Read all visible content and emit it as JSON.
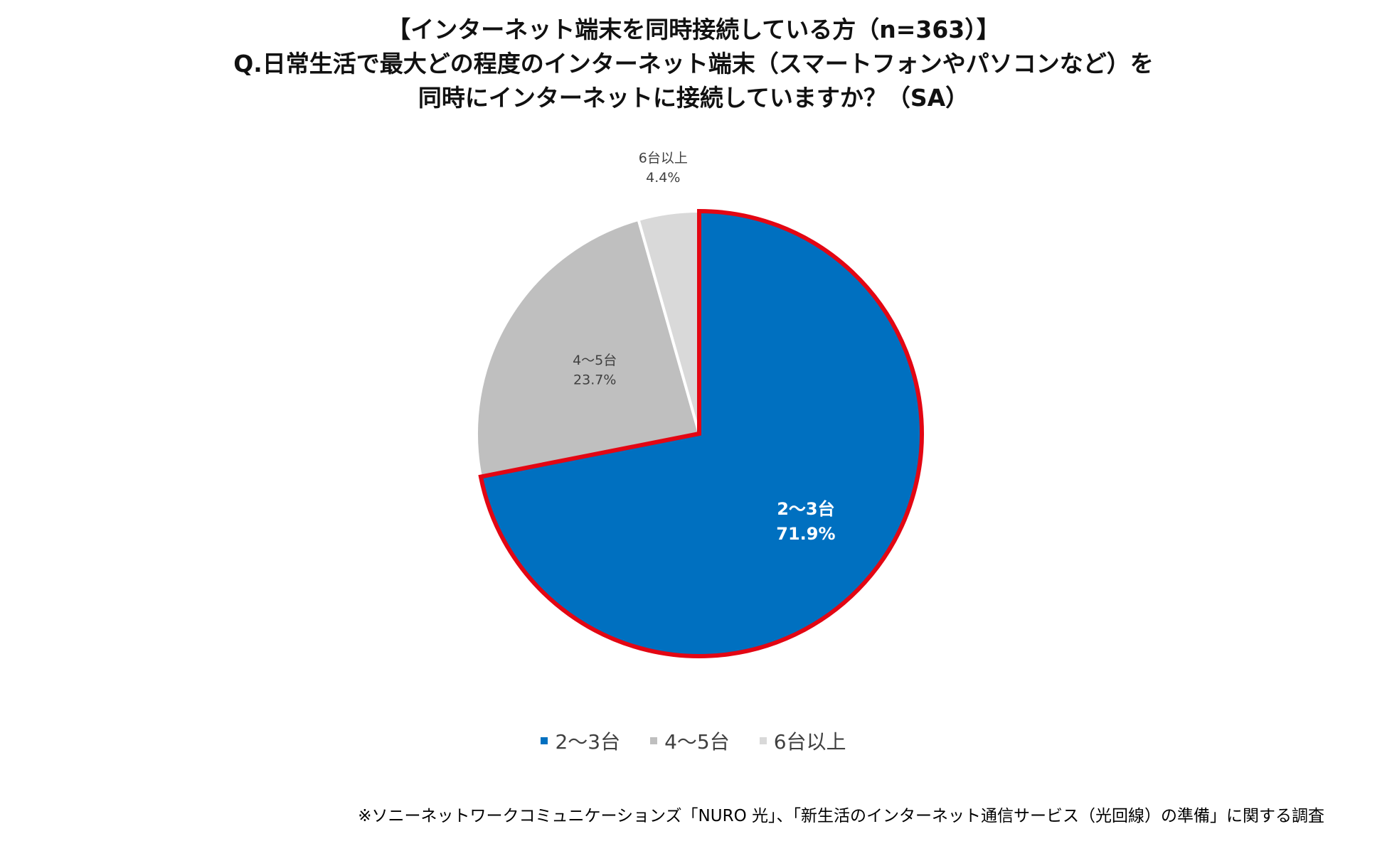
{
  "title_lines": [
    "【インターネット端末を同時接続している方（n=363）】",
    "Q.日常生活で最大どの程度のインターネット端末（スマートフォンやパソコンなど）を",
    "同時にインターネットに接続していますか？（SA）"
  ],
  "source_note": "※ソニーネットワークコミュニケーションズ「NURO 光」、「新生活のインターネット通信サービス（光回線）の準備」に関する調査",
  "chart_data": {
    "type": "pie",
    "title": "【インターネット端末を同時接続している方（n=363）】 Q.日常生活で最大どの程度のインターネット端末（スマートフォンやパソコンなど）を同時にインターネットに接続していますか？（SA）",
    "categories": [
      "2～3台",
      "4～5台",
      "6台以上"
    ],
    "values": [
      71.9,
      23.7,
      4.4
    ],
    "value_labels": [
      "71.9%",
      "23.7%",
      "4.4%"
    ],
    "colors": [
      "#0070C0",
      "#BFBFBF",
      "#D9D9D9"
    ],
    "highlight": {
      "category": "2～3台",
      "outline_color": "#E30613"
    },
    "legend": {
      "position": "bottom",
      "entries": [
        "2～3台",
        "4～5台",
        "6台以上"
      ]
    },
    "label_colors": [
      "#FFFFFF",
      "#404040",
      "#404040"
    ]
  }
}
